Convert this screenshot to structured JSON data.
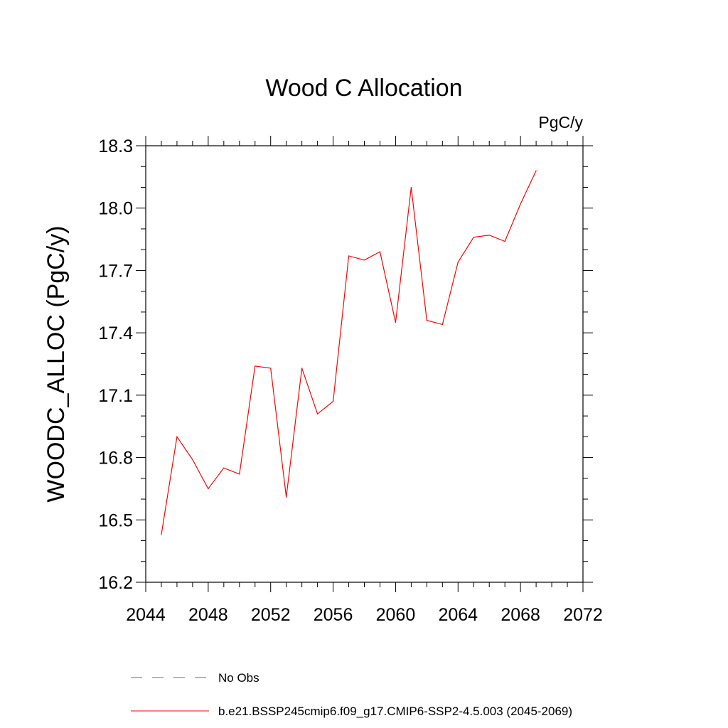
{
  "chart_data": {
    "type": "line",
    "title": "Wood C Allocation",
    "units_label": "PgC/y",
    "xlabel": "",
    "ylabel": "WOODC_ALLOC  (PgC/y)",
    "xlim": [
      2044,
      2072
    ],
    "ylim": [
      16.2,
      18.3
    ],
    "x_ticks": [
      2044,
      2048,
      2052,
      2056,
      2060,
      2064,
      2068,
      2072
    ],
    "y_ticks": [
      "16.2",
      "16.5",
      "16.8",
      "17.1",
      "17.4",
      "17.7",
      "18.0",
      "18.3"
    ],
    "grid": false,
    "legend_position": "bottom",
    "series": [
      {
        "name": "b.e21.BSSP245cmip6.f09_g17.CMIP6-SSP2-4.5.003 (2045-2069)",
        "color": "#ff0000",
        "style": "solid",
        "x": [
          2045,
          2046,
          2047,
          2048,
          2049,
          2050,
          2051,
          2052,
          2053,
          2054,
          2055,
          2056,
          2057,
          2058,
          2059,
          2060,
          2061,
          2062,
          2063,
          2064,
          2065,
          2066,
          2067,
          2068,
          2069
        ],
        "y": [
          16.43,
          16.9,
          16.79,
          16.65,
          16.75,
          16.72,
          17.24,
          17.23,
          16.61,
          17.23,
          17.01,
          17.07,
          17.77,
          17.75,
          17.79,
          17.45,
          18.1,
          17.46,
          17.44,
          17.74,
          17.86,
          17.87,
          17.84,
          18.02,
          18.18
        ]
      }
    ],
    "legend": [
      {
        "label": "No Obs",
        "color": "#6a5acd",
        "style": "dashed"
      },
      {
        "label": "b.e21.BSSP245cmip6.f09_g17.CMIP6-SSP2-4.5.003 (2045-2069)",
        "color": "#ff0000",
        "style": "solid"
      }
    ]
  }
}
